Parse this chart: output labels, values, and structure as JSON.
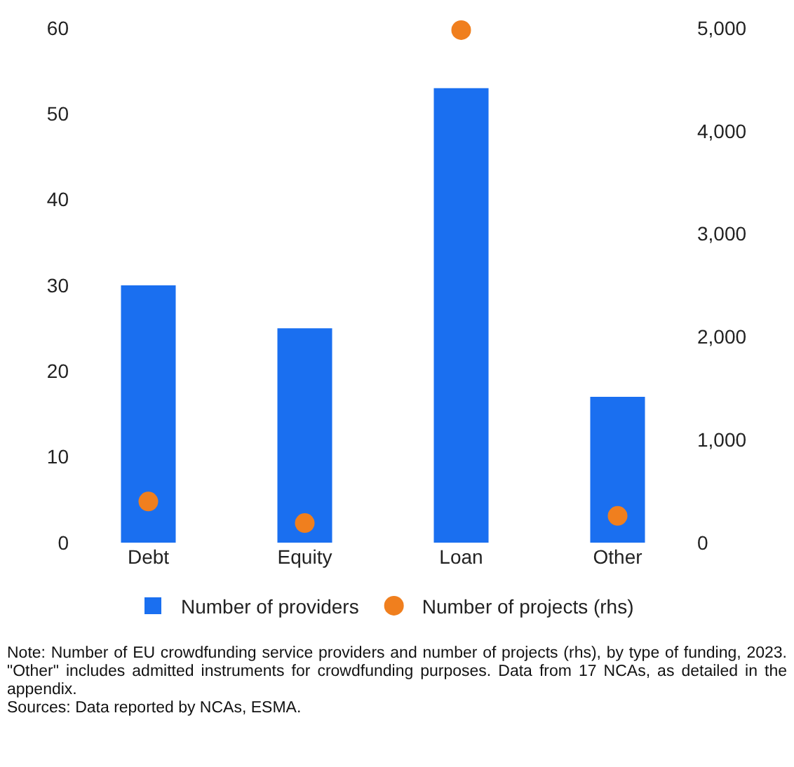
{
  "chart_data": {
    "type": "bar",
    "categories": [
      "Debt",
      "Equity",
      "Loan",
      "Other"
    ],
    "series": [
      {
        "name": "Number of providers",
        "color": "#1a6ff0",
        "values": [
          30,
          25,
          53,
          17
        ]
      },
      {
        "name": "Number of projects (rhs)",
        "type": "scatter",
        "axis": "y2",
        "color": "#f07f1e",
        "values": [
          400,
          190,
          4980,
          260
        ]
      }
    ],
    "ylim": [
      0,
      60
    ],
    "yticks": [
      0,
      10,
      20,
      30,
      40,
      50,
      60
    ],
    "y2lim": [
      0,
      5000
    ],
    "y2ticks": [
      0,
      {
        "value": 1000,
        "label": "1,000"
      },
      {
        "value": 2000,
        "label": "2,000"
      },
      {
        "value": 3000,
        "label": "3,000"
      },
      {
        "value": 4000,
        "label": "4,000"
      },
      {
        "value": 5000,
        "label": "5,000"
      }
    ],
    "grid": false,
    "legend": "bottom",
    "marker": "circle",
    "annotations": [
      "Note: Number of EU crowdfunding service providers and number of projects (rhs), by type of funding, 2023. \"Other\" includes admitted instruments for crowdfunding purposes. Data from 17 NCAs, as detailed in the appendix.",
      "Sources: Data reported by NCAs, ESMA."
    ]
  }
}
